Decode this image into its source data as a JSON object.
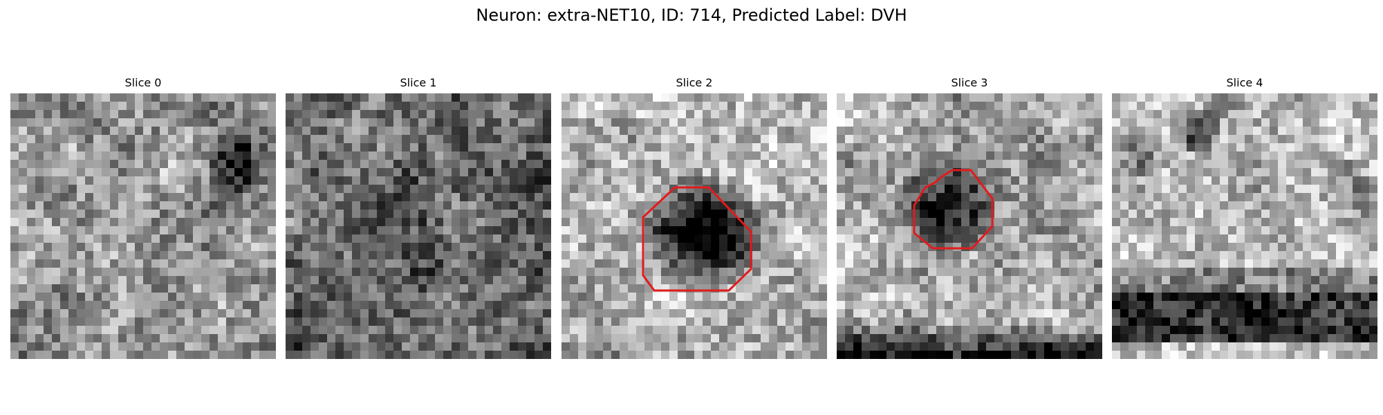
{
  "figure": {
    "title": "Neuron: extra-NET10, ID: 714, Predicted Label: DVH",
    "slices": [
      {
        "title": "Slice 0",
        "has_outline": false
      },
      {
        "title": "Slice 1",
        "has_outline": false
      },
      {
        "title": "Slice 2",
        "has_outline": true
      },
      {
        "title": "Slice 3",
        "has_outline": true
      },
      {
        "title": "Slice 4",
        "has_outline": false
      }
    ],
    "outline_color": "#e31a1c"
  }
}
